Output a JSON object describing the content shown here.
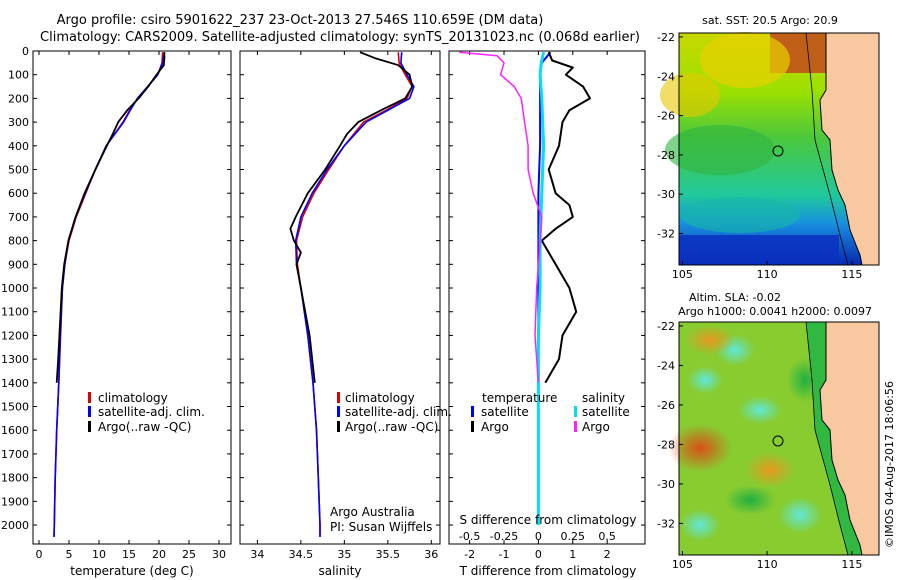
{
  "header": {
    "line1": "Argo profile: csiro 5901622_237 23-Oct-2013 27.546S 110.659E (DM data)",
    "line2": "Climatology: CARS2009. Satellite-adjusted climatology: synTS_20131023.nc (0.068d earlier)"
  },
  "footer_stamp": "©IMOS 04-Aug-2017 18:06:56",
  "colors": {
    "climatology": "#e00000",
    "satellite_adj": "#0000ff",
    "argo": "#000000",
    "salinity_satellite": "#00e0f0",
    "salinity_argo": "#ff20ff",
    "land": "#f8c8a0"
  },
  "chart_data": [
    {
      "type": "line",
      "id": "temperature",
      "xlabel": "temperature (deg C)",
      "xlim": [
        -1,
        32
      ],
      "ylim": [
        2080,
        0
      ],
      "xticks": [
        0,
        5,
        10,
        15,
        20,
        25,
        30
      ],
      "yticks": [
        0,
        100,
        200,
        300,
        400,
        500,
        600,
        700,
        800,
        900,
        1000,
        1100,
        1200,
        1300,
        1400,
        1500,
        1600,
        1700,
        1800,
        1900,
        2000
      ],
      "legend": [
        "climatology",
        "satellite-adj. clim.",
        "Argo(..raw -QC)"
      ],
      "series": [
        {
          "name": "climatology",
          "depth": [
            5,
            50,
            100,
            150,
            200,
            250,
            300,
            400,
            500,
            600,
            700,
            800,
            900,
            1000,
            1200,
            1400,
            1600,
            1800,
            2000,
            2050
          ],
          "values": [
            20.6,
            20.5,
            19.8,
            18.1,
            16.4,
            15.1,
            14.0,
            11.2,
            9.4,
            7.8,
            6.2,
            5.0,
            4.3,
            3.9,
            3.6,
            3.3,
            2.95,
            2.7,
            2.55,
            2.5
          ]
        },
        {
          "name": "satellite-adj. clim.",
          "depth": [
            5,
            50,
            100,
            150,
            200,
            250,
            300,
            400,
            500,
            600,
            700,
            800,
            900,
            1000,
            1200,
            1400,
            1600,
            1800,
            2000,
            2050
          ],
          "values": [
            20.9,
            20.6,
            19.8,
            18.1,
            16.4,
            15.2,
            14.1,
            11.2,
            9.4,
            7.7,
            6.1,
            4.9,
            4.3,
            3.9,
            3.55,
            3.3,
            2.95,
            2.7,
            2.55,
            2.5
          ]
        },
        {
          "name": "Argo(..raw -QC)",
          "depth": [
            5,
            30,
            60,
            100,
            150,
            200,
            250,
            300,
            350,
            400,
            500,
            600,
            700,
            800,
            900,
            1000,
            1100,
            1200,
            1300,
            1400
          ],
          "values": [
            20.9,
            20.9,
            20.8,
            19.6,
            18.2,
            16.6,
            14.7,
            13.2,
            12.3,
            11.3,
            9.4,
            7.6,
            6.1,
            4.9,
            4.2,
            3.8,
            3.6,
            3.4,
            3.2,
            2.95
          ]
        }
      ]
    },
    {
      "type": "line",
      "id": "salinity",
      "xlabel": "salinity",
      "xlim": [
        33.8,
        36.1
      ],
      "ylim": [
        2080,
        0
      ],
      "xticks": [
        34,
        34.5,
        35,
        35.5,
        36
      ],
      "legend": [
        "climatology",
        "satellite-adj. clim.",
        "Argo(..raw -QC)"
      ],
      "annotation": [
        "Argo Australia",
        "PI: Susan Wijffels"
      ],
      "series": [
        {
          "name": "climatology",
          "depth": [
            5,
            50,
            100,
            150,
            200,
            250,
            300,
            400,
            500,
            600,
            700,
            800,
            900,
            1000,
            1200,
            1400,
            1600,
            1800,
            2000,
            2050
          ],
          "values": [
            35.62,
            35.63,
            35.7,
            35.78,
            35.72,
            35.48,
            35.22,
            35.0,
            34.82,
            34.65,
            34.52,
            34.45,
            34.46,
            34.5,
            34.58,
            34.64,
            34.68,
            34.7,
            34.72,
            34.72
          ]
        },
        {
          "name": "satellite-adj. clim.",
          "depth": [
            5,
            50,
            100,
            150,
            200,
            250,
            300,
            400,
            500,
            600,
            700,
            800,
            900,
            1000,
            1200,
            1400,
            1600,
            1800,
            2000,
            2050
          ],
          "values": [
            35.66,
            35.65,
            35.72,
            35.8,
            35.75,
            35.5,
            35.25,
            35.0,
            34.8,
            34.63,
            34.5,
            34.44,
            34.45,
            34.5,
            34.58,
            34.64,
            34.68,
            34.7,
            34.72,
            34.72
          ]
        },
        {
          "name": "Argo(..raw -QC)",
          "depth": [
            5,
            30,
            60,
            100,
            150,
            200,
            250,
            300,
            350,
            400,
            500,
            600,
            700,
            750,
            800,
            850,
            900,
            1000,
            1100,
            1200,
            1300,
            1400
          ],
          "values": [
            35.18,
            35.35,
            35.62,
            35.75,
            35.78,
            35.7,
            35.42,
            35.16,
            35.03,
            34.95,
            34.78,
            34.58,
            34.44,
            34.38,
            34.42,
            34.5,
            34.45,
            34.5,
            34.55,
            34.6,
            34.63,
            34.66
          ]
        }
      ]
    },
    {
      "type": "line",
      "id": "differences",
      "xlabel": "T difference from climatology",
      "xlabel_top": "S difference from climatology",
      "xlim": [
        -2.6,
        3.1
      ],
      "ylim": [
        2080,
        0
      ],
      "xticks": [
        -2,
        -1,
        0,
        1,
        2
      ],
      "xtick_labels_s": [
        "-0.5",
        "-0.25",
        "0",
        "0.25",
        "0.5"
      ],
      "xticks_s_pos": [
        -2,
        -1,
        0,
        1,
        2
      ],
      "legend_titles": [
        "temperature",
        "salinity"
      ],
      "legend": [
        "satellite",
        "Argo",
        "satellite",
        "Argo"
      ],
      "series": [
        {
          "name": "satellite",
          "depth": [
            5,
            50,
            100,
            200,
            400,
            600,
            800,
            1000,
            1200,
            1500,
            2000
          ],
          "values": [
            0.35,
            0.1,
            0.05,
            0.05,
            0.05,
            0.0,
            0.0,
            0.0,
            0.0,
            0.0,
            0.0
          ]
        },
        {
          "name": "Argo",
          "depth": [
            5,
            40,
            70,
            100,
            150,
            200,
            250,
            300,
            400,
            500,
            600,
            650,
            700,
            750,
            800,
            900,
            1000,
            1100,
            1200,
            1300,
            1400
          ],
          "values": [
            0.3,
            0.4,
            1.0,
            0.8,
            1.3,
            1.5,
            0.9,
            0.7,
            0.6,
            0.3,
            0.5,
            0.9,
            1.0,
            0.5,
            0.1,
            0.5,
            0.9,
            1.1,
            0.7,
            0.6,
            0.2
          ]
        },
        {
          "name": "salinity satellite",
          "depth": [
            5,
            50,
            100,
            200,
            400,
            600,
            800,
            1000,
            1200,
            1500,
            2000
          ],
          "values": [
            0.15,
            0.08,
            0.05,
            0.1,
            0.15,
            0.1,
            0.05,
            0.05,
            0.0,
            0.0,
            0.0
          ]
        },
        {
          "name": "salinity Argo",
          "depth": [
            5,
            20,
            50,
            100,
            150,
            200,
            300,
            400,
            500,
            600,
            700,
            800,
            1000,
            1200,
            1400
          ],
          "values": [
            -2.3,
            -1.2,
            -1.0,
            -1.1,
            -0.7,
            -0.5,
            -0.4,
            -0.3,
            -0.3,
            -0.15,
            0.1,
            0.05,
            -0.05,
            -0.1,
            0.0
          ]
        }
      ]
    },
    {
      "type": "heatmap",
      "id": "sst_map",
      "title": "sat. SST: 20.5 Argo: 20.9",
      "xticks": [
        105,
        110,
        115
      ],
      "yticks": [
        -22,
        -24,
        -26,
        -28,
        -30,
        -32
      ],
      "xlim": [
        104.8,
        116.6
      ],
      "ylim": [
        -21.8,
        -33.6
      ]
    },
    {
      "type": "heatmap",
      "id": "sla_map",
      "title": "Altim. SLA: -0.02",
      "subtitle": "Argo h1000: 0.0041 h2000: 0.0097",
      "xticks": [
        105,
        110,
        115
      ],
      "yticks": [
        -22,
        -24,
        -26,
        -28,
        -30,
        -32
      ],
      "xlim": [
        104.8,
        116.6
      ],
      "ylim": [
        -21.8,
        -33.6
      ]
    }
  ]
}
